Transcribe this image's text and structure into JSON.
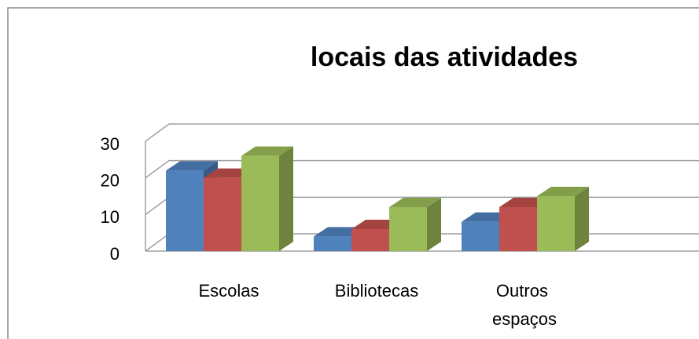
{
  "chart_data": {
    "type": "bar3d",
    "title": "locais das atividades",
    "categories": [
      "Escolas",
      "Bibliotecas",
      "Outros espaços"
    ],
    "series": [
      {
        "color": "#4f81bd",
        "values": [
          22,
          4,
          8
        ]
      },
      {
        "color": "#c0504d",
        "values": [
          20,
          6,
          12
        ]
      },
      {
        "color": "#9bbb59",
        "values": [
          26,
          12,
          15
        ]
      }
    ],
    "ylim": [
      0,
      30
    ],
    "yticks": [
      0,
      10,
      20,
      30
    ],
    "grid": true
  }
}
